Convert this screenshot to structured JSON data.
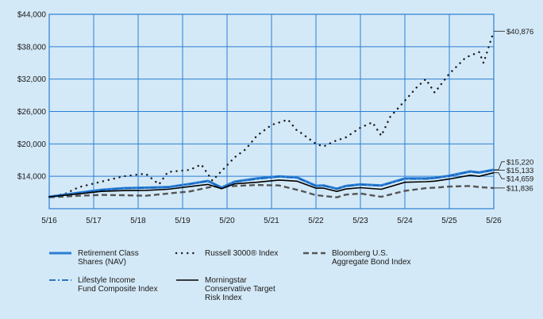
{
  "chart_data": {
    "type": "line",
    "ylim": [
      8000,
      44000
    ],
    "xlim": [
      2016.33,
      2026.33
    ],
    "yticks": [
      "$14,000",
      "$20,000",
      "$26,000",
      "$32,000",
      "$38,000",
      "$44,000"
    ],
    "ytick_values": [
      14000,
      20000,
      26000,
      32000,
      38000,
      44000
    ],
    "xticks": [
      "5/16",
      "5/17",
      "5/18",
      "5/19",
      "5/20",
      "5/21",
      "5/22",
      "5/23",
      "5/24",
      "5/25",
      "5/26"
    ],
    "grid": true,
    "legend_position": "bottom",
    "colors": {
      "retirement": "#2a7fd4",
      "lifestyle": "#1565c0",
      "russell": "#1a1a1a",
      "bloomberg": "#555555",
      "morningstar": "#000000",
      "grid": "#2a7fd4"
    },
    "series": [
      {
        "name": "Retirement Class Shares (NAV)",
        "legend": [
          "Retirement Class",
          "Shares (NAV)"
        ],
        "style": "solid-thick",
        "end_label": "$15,220",
        "x": [
          2016.33,
          2017.0,
          2017.5,
          2018.0,
          2018.5,
          2019.0,
          2019.5,
          2019.9,
          2020.21,
          2020.5,
          2021.0,
          2021.5,
          2021.9,
          2022.33,
          2022.5,
          2022.8,
          2023.0,
          2023.33,
          2023.8,
          2024.33,
          2024.8,
          2025.0,
          2025.33,
          2025.8,
          2026.0,
          2026.33
        ],
        "y": [
          10200,
          10950,
          11500,
          11800,
          11900,
          12000,
          12600,
          13150,
          11900,
          13000,
          13600,
          14000,
          13800,
          12250,
          12300,
          11700,
          12200,
          12500,
          12300,
          13600,
          13600,
          13700,
          14100,
          14900,
          14700,
          15220
        ]
      },
      {
        "name": "Lifestyle Income Fund Composite Index",
        "legend": [
          "Lifestyle Income",
          "Fund Composite Index"
        ],
        "style": "dashdot",
        "end_label": "$15,133",
        "x": [
          2016.33,
          2017.0,
          2017.5,
          2018.0,
          2018.5,
          2019.0,
          2019.5,
          2019.9,
          2020.21,
          2020.5,
          2021.0,
          2021.5,
          2021.9,
          2022.33,
          2022.5,
          2022.8,
          2023.0,
          2023.33,
          2023.8,
          2024.33,
          2024.8,
          2025.0,
          2025.33,
          2025.8,
          2026.0,
          2026.33
        ],
        "y": [
          10200,
          10900,
          11450,
          11750,
          11850,
          11950,
          12550,
          13100,
          11850,
          12950,
          13500,
          13900,
          13700,
          12200,
          12250,
          11650,
          12150,
          12450,
          12250,
          13500,
          13500,
          13650,
          14050,
          14800,
          14650,
          15133
        ]
      },
      {
        "name": "Russell 3000® Index",
        "legend": [
          "Russell 3000® Index"
        ],
        "style": "dotted",
        "end_label": "$40,876",
        "x": [
          2016.33,
          2016.7,
          2017.0,
          2017.5,
          2018.0,
          2018.5,
          2018.8,
          2019.0,
          2019.5,
          2019.75,
          2020.0,
          2020.21,
          2020.5,
          2020.75,
          2021.0,
          2021.33,
          2021.7,
          2021.9,
          2022.0,
          2022.33,
          2022.5,
          2022.75,
          2023.0,
          2023.33,
          2023.6,
          2023.8,
          2024.0,
          2024.33,
          2024.6,
          2024.8,
          2025.0,
          2025.33,
          2025.7,
          2026.0,
          2026.1,
          2026.33
        ],
        "y": [
          10200,
          10800,
          12000,
          13000,
          14000,
          14500,
          12500,
          14800,
          15200,
          16200,
          13200,
          15000,
          17500,
          19000,
          21500,
          23500,
          24500,
          22500,
          22000,
          20000,
          19500,
          20500,
          21200,
          23000,
          24000,
          21500,
          25000,
          28000,
          30500,
          32000,
          29500,
          33000,
          36000,
          37000,
          35000,
          40876
        ]
      },
      {
        "name": "Bloomberg U.S. Aggregate Bond Index",
        "legend": [
          "Bloomberg U.S.",
          "Aggregate Bond Index"
        ],
        "style": "dashed",
        "end_label": "$11,836",
        "x": [
          2016.33,
          2017.0,
          2017.5,
          2018.0,
          2018.5,
          2019.0,
          2019.5,
          2020.0,
          2020.5,
          2021.0,
          2021.5,
          2022.0,
          2022.33,
          2022.8,
          2023.0,
          2023.33,
          2023.8,
          2024.33,
          2024.8,
          2025.0,
          2025.33,
          2025.8,
          2026.0,
          2026.33
        ],
        "y": [
          10100,
          10400,
          10550,
          10500,
          10400,
          10800,
          11200,
          12100,
          12200,
          12400,
          12300,
          11300,
          10500,
          10100,
          10600,
          10800,
          10200,
          11300,
          11800,
          11900,
          12100,
          12200,
          12000,
          11836
        ]
      },
      {
        "name": "Morningstar Conservative Target Risk Index",
        "legend": [
          "Morningstar",
          "Conservative Target",
          "Risk Index"
        ],
        "style": "solid",
        "end_label": "$14,659",
        "x": [
          2016.33,
          2017.0,
          2017.5,
          2018.0,
          2018.5,
          2019.0,
          2019.5,
          2019.9,
          2020.21,
          2020.5,
          2021.0,
          2021.5,
          2021.9,
          2022.33,
          2022.5,
          2022.8,
          2023.0,
          2023.33,
          2023.8,
          2024.33,
          2024.8,
          2025.0,
          2025.33,
          2025.8,
          2026.0,
          2026.33
        ],
        "y": [
          10200,
          10750,
          11200,
          11350,
          11400,
          11600,
          12100,
          12500,
          11700,
          12600,
          12900,
          13300,
          13100,
          11800,
          11800,
          11200,
          11650,
          11900,
          11600,
          12900,
          13000,
          13100,
          13500,
          14200,
          14000,
          14659
        ]
      }
    ]
  }
}
